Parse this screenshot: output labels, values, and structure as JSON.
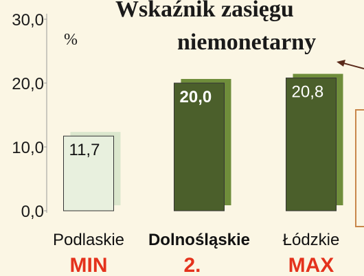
{
  "chart_data": {
    "type": "bar",
    "title": [
      "Wskaźnik zasięgu",
      "niemonetarny"
    ],
    "y_label": "%",
    "categories": [
      "Podlaskie",
      "Dolnośląskie",
      "Łódzkie"
    ],
    "values": [
      11.7,
      20.0,
      20.8
    ],
    "value_labels": [
      "11,7",
      "20,0",
      "20,8"
    ],
    "annotations": [
      "MIN",
      "2.",
      "MAX"
    ],
    "colors": [
      "#e8f0de",
      "#4b5f2b",
      "#4b5f2b"
    ],
    "shadow_colors": [
      "#dbe7cd",
      "#6f8d3b",
      "#6f8d3b"
    ],
    "ylim": [
      0,
      30
    ],
    "yticks": [
      {
        "value": 0,
        "label": "0,0"
      },
      {
        "value": 10,
        "label": "10,0"
      },
      {
        "value": 20,
        "label": "20,0"
      },
      {
        "value": 30,
        "label": "30,0"
      }
    ]
  }
}
